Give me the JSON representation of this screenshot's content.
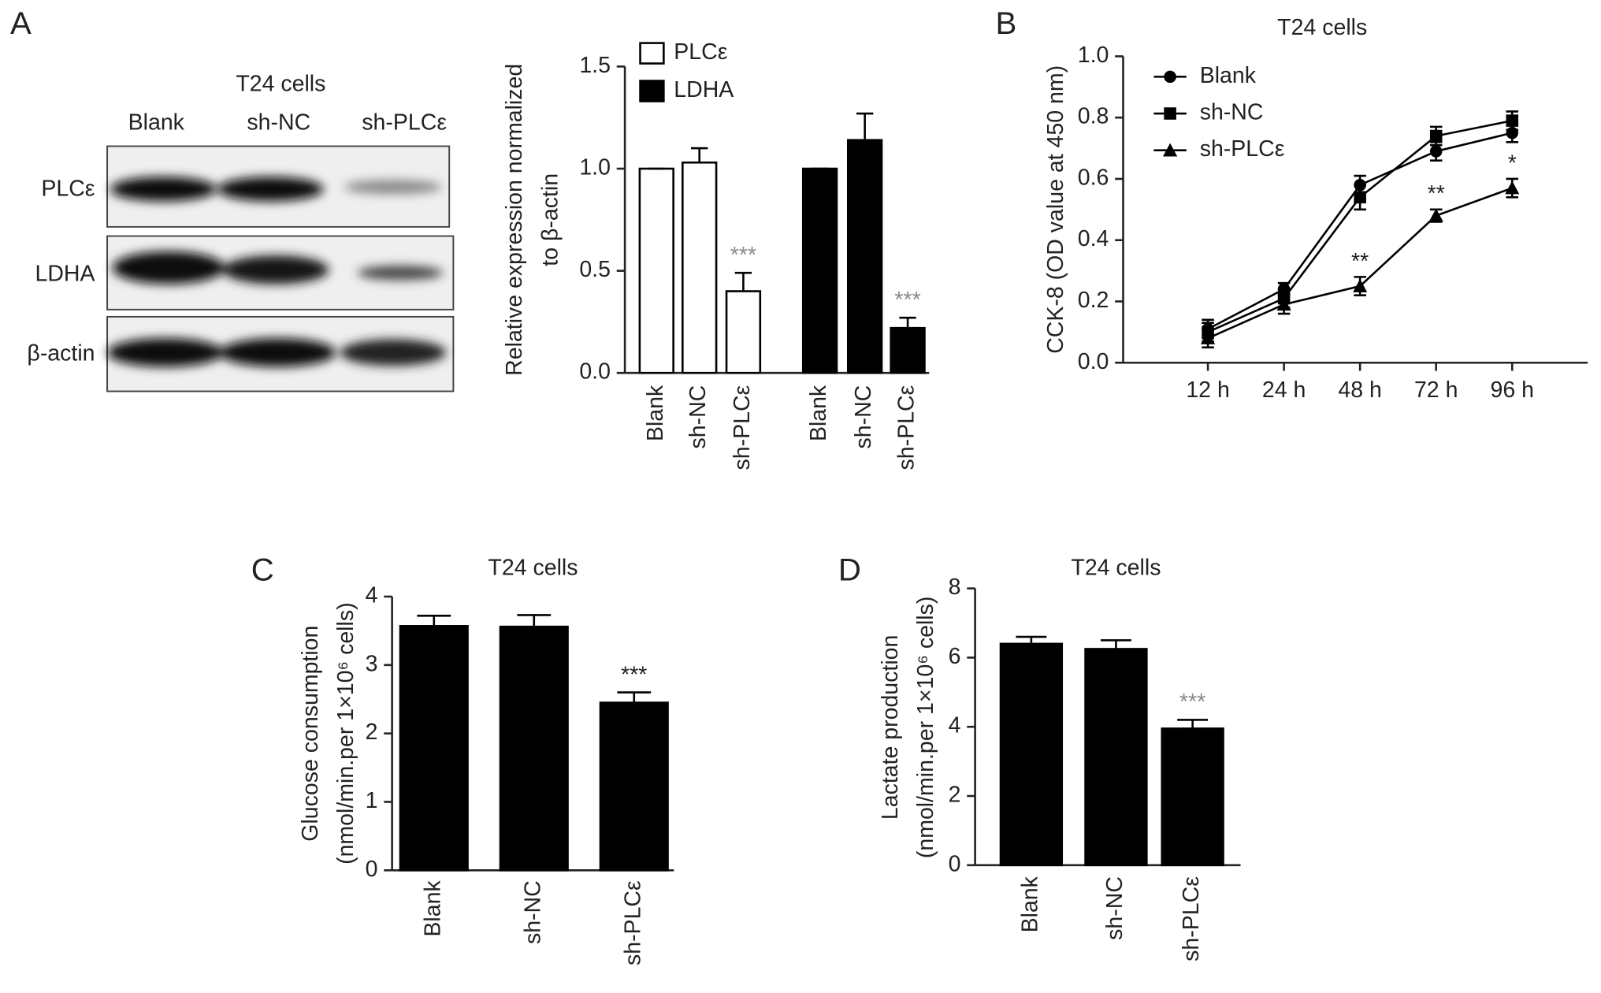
{
  "blot": {
    "panel": "A",
    "title": "T24 cells",
    "lanes": [
      "Blank",
      "sh-NC",
      "sh-PLCε"
    ],
    "rows": [
      "PLCε",
      "LDHA",
      "β-actin"
    ]
  },
  "chart_data": [
    {
      "type": "bar",
      "ylabel": [
        "Relative expression normalized",
        "to β-actin"
      ],
      "categories": [
        "Blank",
        "sh-NC",
        "sh-PLCε"
      ],
      "series": [
        {
          "name": "PLCε",
          "color": "#ffffff",
          "values": [
            1.0,
            1.03,
            0.4
          ],
          "errors": [
            0,
            0.07,
            0.09
          ],
          "annotations": [
            null,
            null,
            "***"
          ]
        },
        {
          "name": "LDHA",
          "color": "#000000",
          "values": [
            1.0,
            1.14,
            0.22
          ],
          "errors": [
            0,
            0.13,
            0.05
          ],
          "annotations": [
            null,
            null,
            "***"
          ]
        }
      ],
      "annotation_color": "#8a8a8a",
      "ylim": [
        0,
        1.5
      ],
      "yticks": [
        {
          "value": 0,
          "label": "0.0"
        },
        0.5,
        {
          "value": 1,
          "label": "1.0"
        },
        1.5
      ]
    },
    {
      "type": "line",
      "panel": "B",
      "title": "T24 cells",
      "ylabel": [
        "CCK-8 (OD value at 450 nm)"
      ],
      "categories": [
        "12 h",
        "24 h",
        "48 h",
        "72 h",
        "96 h"
      ],
      "series": [
        {
          "name": "Blank",
          "color": "#000000",
          "marker": "circle",
          "values": [
            0.11,
            0.24,
            0.58,
            0.69,
            0.75
          ],
          "errors": [
            0.03,
            0.02,
            0.03,
            0.03,
            0.03
          ],
          "annotations": [
            null,
            null,
            null,
            null,
            null
          ]
        },
        {
          "name": "sh-NC",
          "color": "#000000",
          "marker": "square",
          "values": [
            0.1,
            0.21,
            0.54,
            0.74,
            0.79
          ],
          "errors": [
            0.03,
            0.03,
            0.04,
            0.03,
            0.03
          ],
          "annotations": [
            null,
            null,
            null,
            null,
            null
          ]
        },
        {
          "name": "sh-PLCε",
          "color": "#000000",
          "marker": "triangle",
          "values": [
            0.08,
            0.19,
            0.25,
            0.48,
            0.57
          ],
          "errors": [
            0.03,
            0.03,
            0.03,
            0.02,
            0.03
          ],
          "annotations": [
            null,
            null,
            "**",
            "**",
            "*"
          ]
        }
      ],
      "annotation_color": "#222222",
      "ylim": [
        0,
        1
      ],
      "yticks": [
        {
          "value": 0,
          "label": "0.0"
        },
        0.2,
        0.4,
        0.6,
        0.8,
        {
          "value": 1,
          "label": "1.0"
        }
      ]
    },
    {
      "type": "bar",
      "panel": "C",
      "title": "T24 cells",
      "ylabel": [
        "Glucose consumption",
        "(nmol/min.per 1×10⁶ cells)"
      ],
      "categories": [
        "Blank",
        "sh-NC",
        "sh-PLCε"
      ],
      "series": [
        {
          "color": "#000000",
          "values": [
            3.57,
            3.56,
            2.45
          ],
          "errors": [
            0.15,
            0.17,
            0.15
          ],
          "annotations": [
            null,
            null,
            "***"
          ]
        }
      ],
      "annotation_color": "#222222",
      "ylim": [
        0,
        4
      ],
      "yticks": [
        0,
        1,
        2,
        3,
        4
      ]
    },
    {
      "type": "bar",
      "panel": "D",
      "title": "T24 cells",
      "ylabel": [
        "Lactate production",
        "(nmol/min.per 1×10⁶ cells)"
      ],
      "categories": [
        "Blank",
        "sh-NC",
        "sh-PLCε"
      ],
      "series": [
        {
          "color": "#000000",
          "values": [
            6.4,
            6.25,
            3.95
          ],
          "errors": [
            0.2,
            0.25,
            0.25
          ],
          "annotations": [
            null,
            null,
            "***"
          ]
        }
      ],
      "annotation_color": "#8a8a8a",
      "ylim": [
        0,
        8
      ],
      "yticks": [
        0,
        2,
        4,
        6,
        8
      ]
    }
  ]
}
